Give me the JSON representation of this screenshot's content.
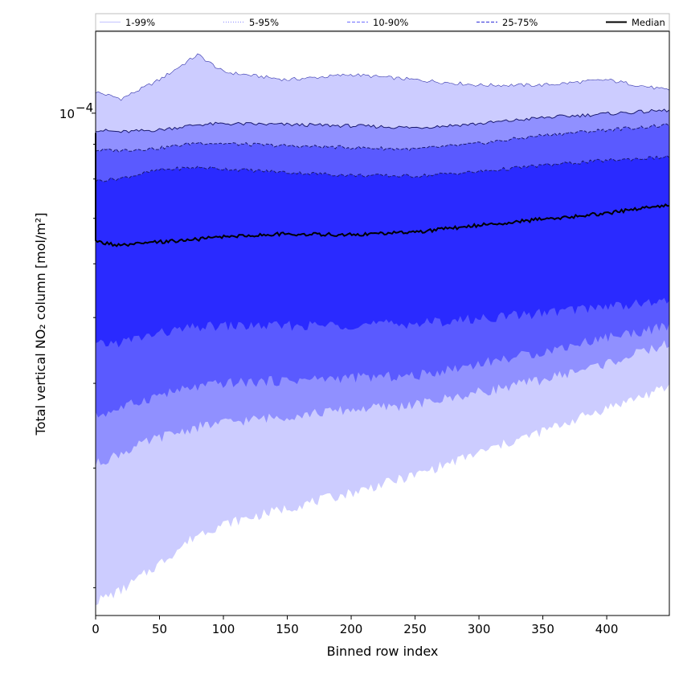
{
  "chart_data": {
    "type": "area",
    "xlabel": "Binned row index",
    "ylabel": "Total vertical NO₂ column [mol/m²]",
    "xlim": [
      0,
      449
    ],
    "ylim": [
      1.82e-05,
      0.000132
    ],
    "yscale": "log",
    "x_ticks": [
      0,
      50,
      100,
      150,
      200,
      250,
      300,
      350,
      400
    ],
    "x_tick_labels": [
      "0",
      "50",
      "100",
      "150",
      "200",
      "250",
      "300",
      "350",
      "400"
    ],
    "y_major_ticks": [
      0.0001
    ],
    "y_major_tick_labels": [
      "10"
    ],
    "y_major_tick_exponent": "−4",
    "y_minor_ticks": [
      2e-05,
      3e-05,
      4e-05,
      5e-05,
      6e-05,
      7e-05,
      8e-05,
      9e-05
    ],
    "legend_position": "top",
    "legend": [
      {
        "label": "1-99%",
        "color": "#ccccff",
        "style": "solid"
      },
      {
        "label": "5-95%",
        "color": "#9999ff",
        "style": "dotted"
      },
      {
        "label": "10-90%",
        "color": "#8080ff",
        "style": "dashed"
      },
      {
        "label": "25-75%",
        "color": "#4b4bdf",
        "style": "dashed"
      },
      {
        "label": "Median",
        "color": "#000000",
        "style": "solid"
      }
    ],
    "x": [
      0,
      20,
      50,
      80,
      100,
      150,
      200,
      250,
      300,
      350,
      400,
      449
    ],
    "bands": [
      {
        "name": "1-99%",
        "color": "#ccccff",
        "lower": [
          1.91e-05,
          1.98e-05,
          2.17e-05,
          2.4e-05,
          2.48e-05,
          2.62e-05,
          2.76e-05,
          2.93e-05,
          3.16e-05,
          3.4e-05,
          3.68e-05,
          3.95e-05
        ],
        "upper": [
          0.0001075,
          0.000105,
          0.000112,
          0.000122,
          0.000115,
          0.000112,
          0.000114,
          0.000112,
          0.00011,
          0.00011,
          0.000112,
          0.000108
        ]
      },
      {
        "name": "5-95%",
        "color": "#9090ff",
        "lower": [
          3.04e-05,
          3.16e-05,
          3.33e-05,
          3.45e-05,
          3.5e-05,
          3.58e-05,
          3.66e-05,
          3.72e-05,
          3.88e-05,
          4.05e-05,
          4.28e-05,
          4.58e-05
        ],
        "upper": [
          9.45e-05,
          9.38e-05,
          9.45e-05,
          9.62e-05,
          9.65e-05,
          9.62e-05,
          9.58e-05,
          9.52e-05,
          9.65e-05,
          9.85e-05,
          9.98e-05,
          0.000101
        ]
      },
      {
        "name": "10-90%",
        "color": "#5a5aff",
        "lower": [
          3.58e-05,
          3.68e-05,
          3.85e-05,
          3.95e-05,
          4e-05,
          4.04e-05,
          4.08e-05,
          4.1e-05,
          4.28e-05,
          4.45e-05,
          4.68e-05,
          4.85e-05
        ],
        "upper": [
          8.82e-05,
          8.82e-05,
          8.88e-05,
          9.05e-05,
          9.02e-05,
          8.95e-05,
          8.9e-05,
          8.85e-05,
          9.02e-05,
          9.28e-05,
          9.45e-05,
          9.6e-05
        ]
      },
      {
        "name": "25-75%",
        "color": "#2a2aff",
        "lower": [
          4.55e-05,
          4.6e-05,
          4.74e-05,
          4.84e-05,
          4.86e-05,
          4.86e-05,
          4.88e-05,
          4.9e-05,
          4.98e-05,
          5.08e-05,
          5.2e-05,
          5.28e-05
        ],
        "upper": [
          7.95e-05,
          8.02e-05,
          8.25e-05,
          8.32e-05,
          8.28e-05,
          8.18e-05,
          8.1e-05,
          8.08e-05,
          8.2e-05,
          8.38e-05,
          8.52e-05,
          8.62e-05
        ]
      }
    ],
    "median": {
      "name": "Median",
      "color": "#000000",
      "values": [
        6.47e-05,
        6.38e-05,
        6.46e-05,
        6.52e-05,
        6.58e-05,
        6.64e-05,
        6.62e-05,
        6.68e-05,
        6.84e-05,
        6.98e-05,
        7.12e-05,
        7.34e-05
      ]
    }
  }
}
